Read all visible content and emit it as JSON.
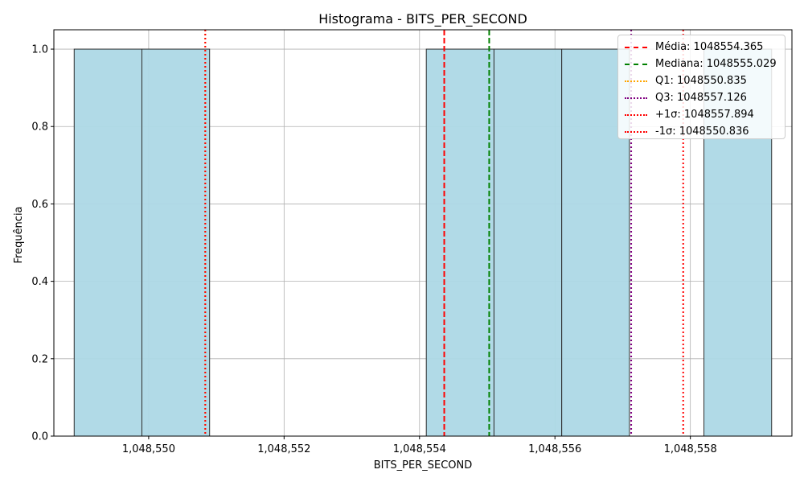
{
  "chart_data": {
    "type": "bar",
    "title": "Histograma - BITS_PER_SECOND",
    "xlabel": "BITS_PER_SECOND",
    "ylabel": "Frequência",
    "xlim": [
      1048548.6,
      1048559.5
    ],
    "ylim": [
      0,
      1.05
    ],
    "grid": true,
    "legend_position": "top-right",
    "bar_color": "#add8e6",
    "bins": [
      {
        "start": 1048548.9,
        "end": 1048549.9,
        "count": 1
      },
      {
        "start": 1048549.9,
        "end": 1048550.9,
        "count": 1
      },
      {
        "start": 1048554.1,
        "end": 1048555.1,
        "count": 1
      },
      {
        "start": 1048555.1,
        "end": 1048556.1,
        "count": 1
      },
      {
        "start": 1048556.1,
        "end": 1048557.1,
        "count": 1
      },
      {
        "start": 1048558.2,
        "end": 1048559.2,
        "count": 1
      }
    ],
    "x_ticks": [
      {
        "value": 1048550,
        "label": "1,048,550"
      },
      {
        "value": 1048552,
        "label": "1,048,552"
      },
      {
        "value": 1048554,
        "label": "1,048,554"
      },
      {
        "value": 1048556,
        "label": "1,048,556"
      },
      {
        "value": 1048558,
        "label": "1,048,558"
      }
    ],
    "y_ticks": [
      {
        "value": 0.0,
        "label": "0.0"
      },
      {
        "value": 0.2,
        "label": "0.2"
      },
      {
        "value": 0.4,
        "label": "0.4"
      },
      {
        "value": 0.6,
        "label": "0.6"
      },
      {
        "value": 0.8,
        "label": "0.8"
      },
      {
        "value": 1.0,
        "label": "1.0"
      }
    ],
    "reference_lines": [
      {
        "label": "Média: 1048554.365",
        "value": 1048554.365,
        "color": "#ff0000",
        "style": "dashed"
      },
      {
        "label": "Mediana: 1048555.029",
        "value": 1048555.029,
        "color": "#008000",
        "style": "dashed"
      },
      {
        "label": "Q1: 1048550.835",
        "value": 1048550.835,
        "color": "#ffa500",
        "style": "dotted"
      },
      {
        "label": "Q3: 1048557.126",
        "value": 1048557.126,
        "color": "#800080",
        "style": "dotted"
      },
      {
        "label": "+1σ: 1048557.894",
        "value": 1048557.894,
        "color": "#ff0000",
        "style": "dotted"
      },
      {
        "label": "-1σ: 1048550.836",
        "value": 1048550.836,
        "color": "#ff0000",
        "style": "dotted"
      }
    ]
  }
}
